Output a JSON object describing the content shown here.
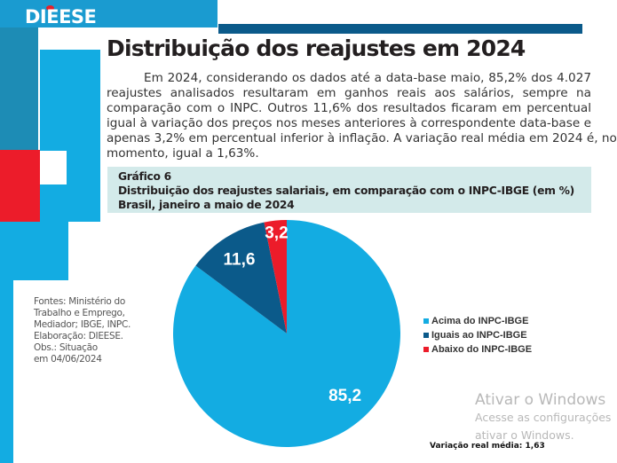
{
  "logo": "DIEESE",
  "title": "Distribuição dos reajustes em 2024",
  "body_lines": [
    "Em 2024, considerando os dados até a data-base maio, 85,2% dos 4.027",
    "reajustes analisados resultaram em ganhos reais aos salários, sempre na",
    "comparação com o INPC. Outros 11,6% dos resultados ficaram em percentual",
    "igual à variação dos preços nos meses anteriores à correspondente data-base e",
    "apenas 3,2% em percentual inferior à inflação. A variação real média em 2024 é, no",
    "momento, igual a 1,63%."
  ],
  "caption": {
    "number": "Gráfico 6",
    "title": "Distribuição dos reajustes salariais, em comparação com o INPC-IBGE (em %)",
    "subtitle": "Brasil, janeiro a maio de 2024"
  },
  "sources": [
    "Fontes: Ministério do",
    "Trabalho e Emprego,",
    "Mediador; IBGE, INPC.",
    "Elaboração: DIEESE.",
    "Obs.: Situação",
    "em 04/06/2024"
  ],
  "chart_data": {
    "type": "pie",
    "categories": [
      "Acima do INPC-IBGE",
      "Iguais ao INPC-IBGE",
      "Abaixo do INPC-IBGE"
    ],
    "values": [
      85.2,
      11.6,
      3.2
    ],
    "labels": [
      "85,2",
      "11,6",
      "3,2"
    ],
    "colors": [
      "#13ace2",
      "#0b5a8a",
      "#ec1c2a"
    ],
    "legend": "right",
    "start": "top, clockwise"
  },
  "variacao": "Variação real média: 1,63",
  "watermark": {
    "line1": "Ativar o Windows",
    "line2": "Acesse as configurações",
    "line3": "ativar o Windows."
  }
}
